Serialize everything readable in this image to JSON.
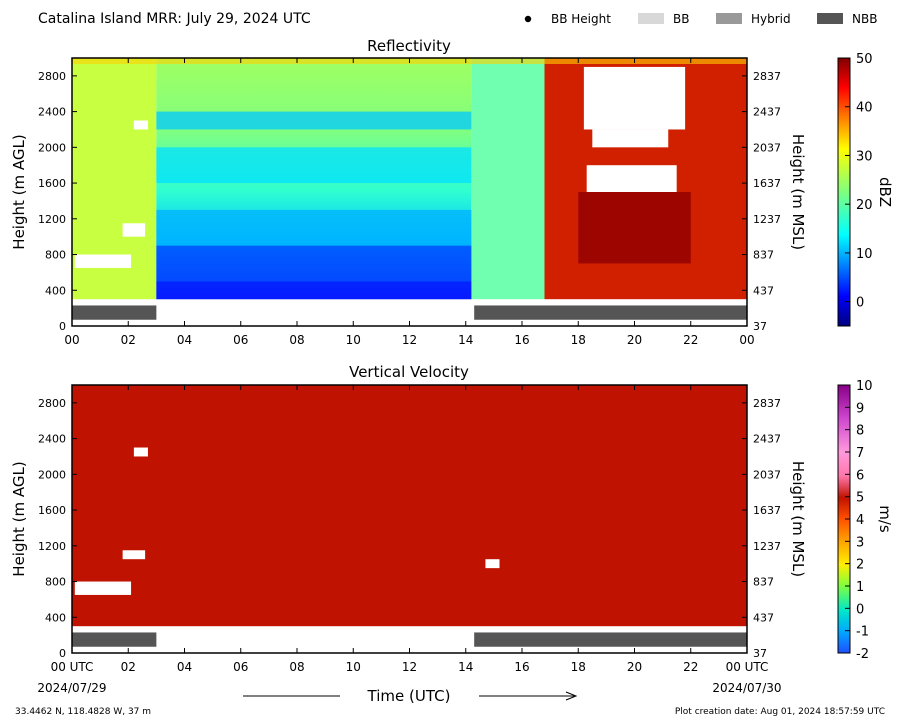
{
  "figure": {
    "title": "Catalina Island MRR:  July 29, 2024 UTC",
    "xlabel": "Time (UTC)",
    "footer_left": "33.4462 N, 118.4828 W, 37 m",
    "footer_right": "Plot creation date: Aug 01, 2024 18:57:59 UTC",
    "x_tick_labels": [
      "00 UTC",
      "02",
      "04",
      "06",
      "08",
      "10",
      "12",
      "14",
      "16",
      "18",
      "20",
      "22",
      "00 UTC"
    ],
    "x_ticks_hours": [
      0,
      2,
      4,
      6,
      8,
      10,
      12,
      14,
      16,
      18,
      20,
      22,
      24
    ],
    "x_tick_labels_top": [
      "00",
      "02",
      "04",
      "06",
      "08",
      "10",
      "12",
      "14",
      "16",
      "18",
      "20",
      "22",
      "00"
    ],
    "date_start": "2024/07/29",
    "date_end": "2024/07/30",
    "legend": [
      {
        "name": "BB Height",
        "kind": "dot",
        "color": "#000000"
      },
      {
        "name": "BB",
        "kind": "patch",
        "color": "#d8d8d8"
      },
      {
        "name": "Hybrid",
        "kind": "patch",
        "color": "#999999"
      },
      {
        "name": "NBB",
        "kind": "patch",
        "color": "#555555"
      }
    ],
    "colors": {
      "nbb": "#555555",
      "white_gap": "#ffffff",
      "velocity_fill": "#c01200"
    }
  },
  "chart_data": [
    {
      "type": "heatmap",
      "title": "Reflectivity",
      "ylabel": "Height (m AGL)",
      "ylabel_right": "Height (m MSL)",
      "colorbar_label": "dBZ",
      "xlim": [
        0,
        24
      ],
      "ylim": [
        0,
        3000
      ],
      "yticks_agl": [
        0,
        400,
        800,
        1200,
        1600,
        2000,
        2400,
        2800
      ],
      "yticks_msl": [
        37,
        437,
        837,
        1237,
        1637,
        2037,
        2437,
        2837
      ],
      "colorbar_range": [
        -5,
        50
      ],
      "colorbar_ticks": [
        0,
        10,
        20,
        30,
        40,
        50
      ],
      "colormap": "jet",
      "data_height_range": [
        300,
        3000
      ],
      "time_segments": [
        {
          "start": 0,
          "end": 3,
          "dbz_low": 16,
          "dbz_high": 22,
          "notes": "yellow-green with white gaps"
        },
        {
          "start": 3,
          "end": 14.2,
          "dbz_low": 2,
          "dbz_high": 19,
          "notes": "blue low levels, green aloft"
        },
        {
          "start": 14.2,
          "end": 16.8,
          "dbz_low": 12,
          "dbz_high": 22,
          "notes": "transition"
        },
        {
          "start": 16.8,
          "end": 24,
          "dbz_low": 35,
          "dbz_high": 48,
          "notes": "high reflectivity, white gaps aloft"
        }
      ],
      "nbb_segments": [
        [
          0,
          3
        ],
        [
          14.3,
          24
        ]
      ]
    },
    {
      "type": "heatmap",
      "title": "Vertical Velocity",
      "ylabel": "Height (m AGL)",
      "ylabel_right": "Height (m MSL)",
      "colorbar_label": "m/s",
      "xlim": [
        0,
        24
      ],
      "ylim": [
        0,
        3000
      ],
      "yticks_agl": [
        0,
        400,
        800,
        1200,
        1600,
        2000,
        2400,
        2800
      ],
      "yticks_msl": [
        37,
        437,
        837,
        1237,
        1637,
        2037,
        2437,
        2837
      ],
      "colorbar_range": [
        -2,
        10
      ],
      "colorbar_ticks": [
        -2,
        -1,
        0,
        1,
        2,
        3,
        4,
        5,
        6,
        7,
        8,
        9,
        10
      ],
      "colorbar_tick_labels": [
        "-2",
        "-1",
        "0",
        "1",
        "2",
        "3",
        "4",
        "5",
        "6",
        "7",
        "8",
        "9",
        "10"
      ],
      "fill_value_ms": 6,
      "data_height_range": [
        300,
        3000
      ],
      "nbb_segments": [
        [
          0,
          3
        ],
        [
          14.3,
          24
        ]
      ]
    }
  ]
}
